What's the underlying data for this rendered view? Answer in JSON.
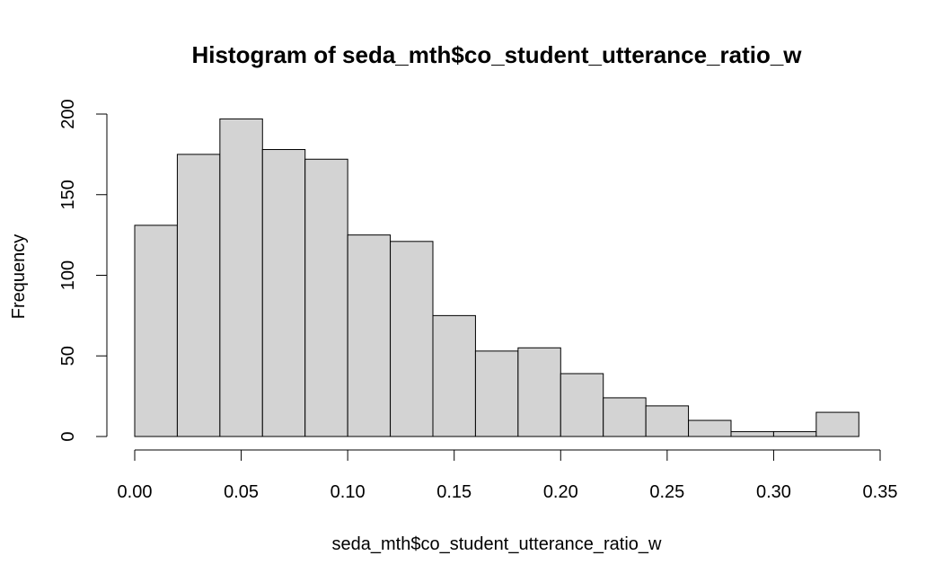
{
  "chart_data": {
    "type": "bar",
    "title": "Histogram of seda_mth$co_student_utterance_ratio_w",
    "xlabel": "seda_mth$co_student_utterance_ratio_w",
    "ylabel": "Frequency",
    "bin_edges": [
      0.0,
      0.02,
      0.04,
      0.06,
      0.08,
      0.1,
      0.12,
      0.14,
      0.16,
      0.18,
      0.2,
      0.22,
      0.24,
      0.26,
      0.28,
      0.3,
      0.32,
      0.34
    ],
    "values": [
      131,
      175,
      197,
      178,
      172,
      125,
      121,
      75,
      53,
      55,
      39,
      24,
      19,
      10,
      3,
      3,
      15
    ],
    "xlim": [
      0,
      0.35
    ],
    "ylim": [
      0,
      200
    ],
    "x_ticks": [
      "0.00",
      "0.05",
      "0.10",
      "0.15",
      "0.20",
      "0.25",
      "0.30",
      "0.35"
    ],
    "y_ticks": [
      "0",
      "50",
      "100",
      "150",
      "200"
    ],
    "bar_fill": "#d3d3d3",
    "bar_stroke": "#000000",
    "grid": false
  }
}
